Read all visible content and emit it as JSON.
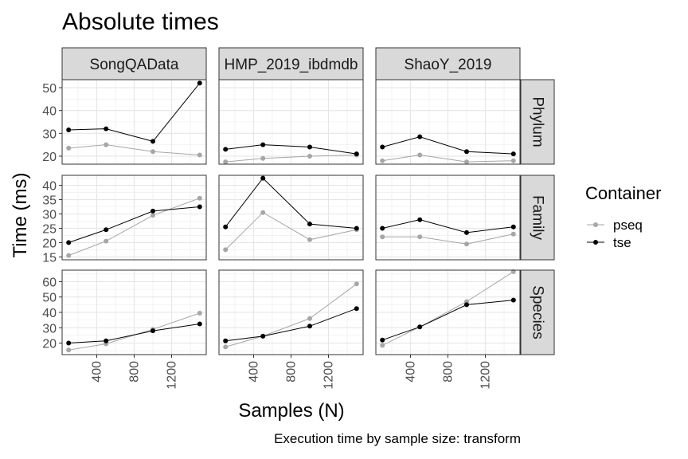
{
  "chart_data": {
    "type": "line",
    "title": "Absolute times",
    "xlabel": "Samples (N)",
    "ylabel": "Time (ms)",
    "caption": "Execution time by sample size: transform",
    "legend": {
      "title": "Container",
      "position": "right",
      "entries": [
        {
          "name": "pseq",
          "color": "#a6a6a6"
        },
        {
          "name": "tse",
          "color": "#000000"
        }
      ]
    },
    "grid": true,
    "theme": "bw",
    "columns": [
      "SongQAData",
      "HMP_2019_ibdmdb",
      "ShaoY_2019"
    ],
    "rows": [
      "Phylum",
      "Family",
      "Species"
    ],
    "x_values": [
      100,
      500,
      1000,
      1500
    ],
    "x_ticks": [
      400,
      800,
      1200
    ],
    "xlim": [
      30,
      1570
    ],
    "rows_axes": {
      "Phylum": {
        "ylim": [
          16.5,
          53.5
        ],
        "ticks": [
          20,
          30,
          40,
          50
        ]
      },
      "Family": {
        "ylim": [
          14.0,
          43.5
        ],
        "ticks": [
          15,
          20,
          25,
          30,
          35,
          40
        ]
      },
      "Species": {
        "ylim": [
          12.5,
          67.5
        ],
        "ticks": [
          20,
          30,
          40,
          50,
          60
        ]
      }
    },
    "panels": [
      {
        "row": "Phylum",
        "col": "SongQAData",
        "series": [
          {
            "name": "pseq",
            "values": [
              23.5,
              25.0,
              22.0,
              20.5
            ]
          },
          {
            "name": "tse",
            "values": [
              31.5,
              32.0,
              26.5,
              52.0
            ]
          }
        ]
      },
      {
        "row": "Phylum",
        "col": "HMP_2019_ibdmdb",
        "series": [
          {
            "name": "pseq",
            "values": [
              17.5,
              19.0,
              20.0,
              20.5
            ]
          },
          {
            "name": "tse",
            "values": [
              23.0,
              25.0,
              24.0,
              21.0
            ]
          }
        ]
      },
      {
        "row": "Phylum",
        "col": "ShaoY_2019",
        "series": [
          {
            "name": "pseq",
            "values": [
              18.0,
              20.5,
              17.5,
              18.0
            ]
          },
          {
            "name": "tse",
            "values": [
              24.0,
              28.5,
              22.0,
              21.0
            ]
          }
        ]
      },
      {
        "row": "Family",
        "col": "SongQAData",
        "series": [
          {
            "name": "pseq",
            "values": [
              15.5,
              20.5,
              29.5,
              35.5
            ]
          },
          {
            "name": "tse",
            "values": [
              20.0,
              24.5,
              31.0,
              32.5
            ]
          }
        ]
      },
      {
        "row": "Family",
        "col": "HMP_2019_ibdmdb",
        "series": [
          {
            "name": "pseq",
            "values": [
              17.5,
              30.5,
              21.0,
              24.5
            ]
          },
          {
            "name": "tse",
            "values": [
              25.5,
              42.5,
              26.5,
              25.0
            ]
          }
        ]
      },
      {
        "row": "Family",
        "col": "ShaoY_2019",
        "series": [
          {
            "name": "pseq",
            "values": [
              22.0,
              22.0,
              19.5,
              23.0
            ]
          },
          {
            "name": "tse",
            "values": [
              25.0,
              28.0,
              23.5,
              25.5
            ]
          }
        ]
      },
      {
        "row": "Species",
        "col": "SongQAData",
        "series": [
          {
            "name": "pseq",
            "values": [
              15.5,
              19.5,
              29.0,
              39.5
            ]
          },
          {
            "name": "tse",
            "values": [
              20.0,
              21.5,
              28.0,
              32.5
            ]
          }
        ]
      },
      {
        "row": "Species",
        "col": "HMP_2019_ibdmdb",
        "series": [
          {
            "name": "pseq",
            "values": [
              17.5,
              24.5,
              36.0,
              58.5
            ]
          },
          {
            "name": "tse",
            "values": [
              21.5,
              24.5,
              31.0,
              42.5
            ]
          }
        ]
      },
      {
        "row": "Species",
        "col": "ShaoY_2019",
        "series": [
          {
            "name": "pseq",
            "values": [
              18.5,
              30.5,
              47.0,
              66.5
            ]
          },
          {
            "name": "tse",
            "values": [
              22.0,
              30.5,
              45.0,
              48.0
            ]
          }
        ]
      }
    ]
  }
}
